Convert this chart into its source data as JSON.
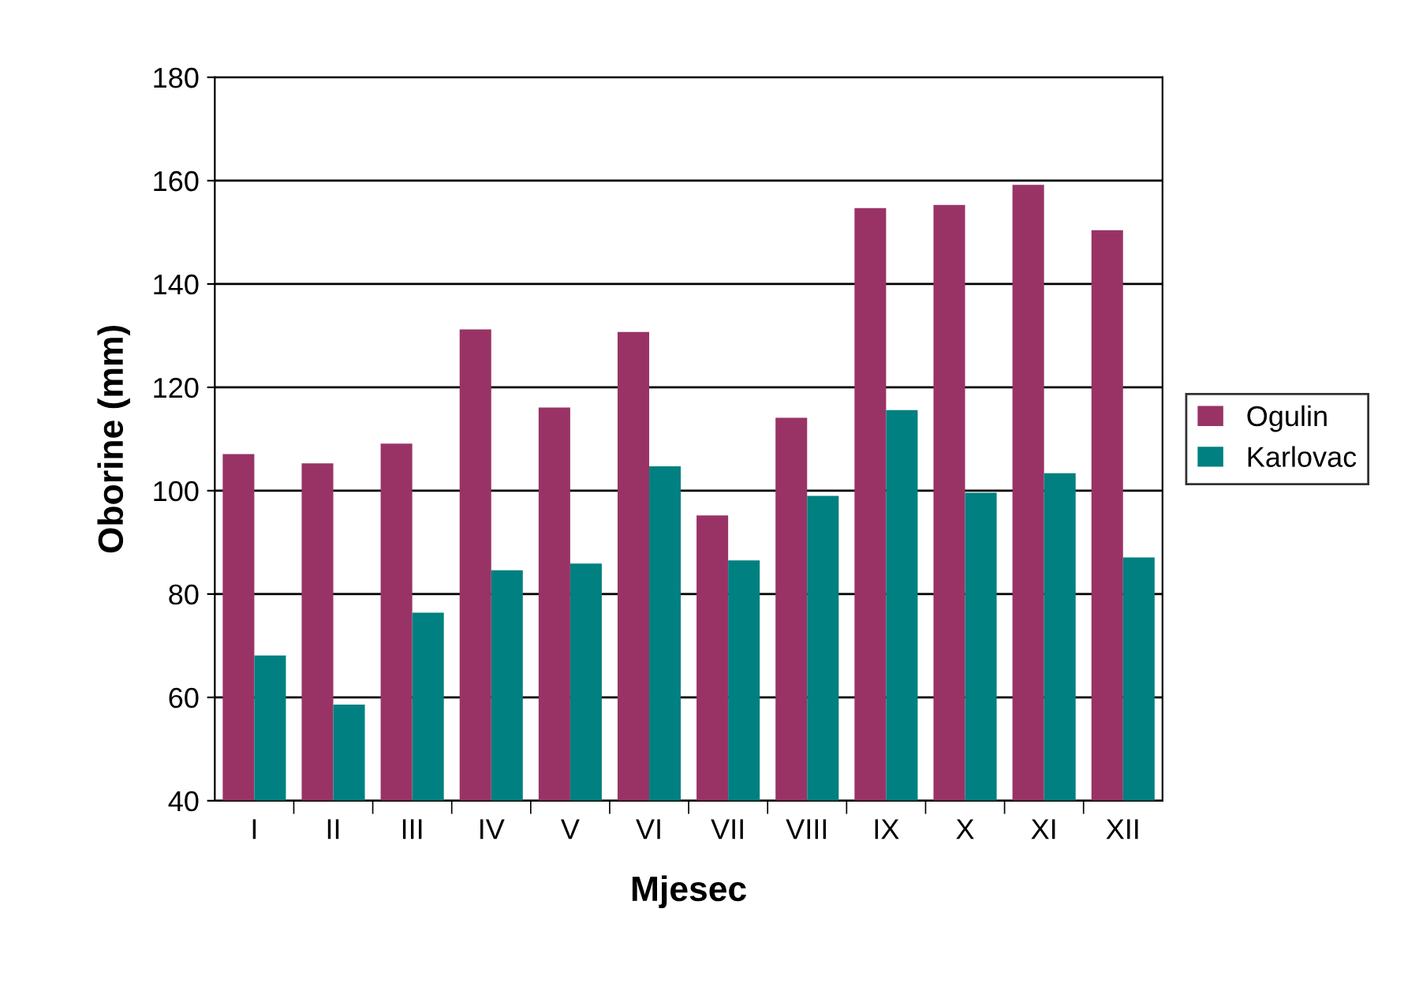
{
  "chart_data": {
    "type": "bar",
    "xlabel": "Mjesec",
    "ylabel": "Oborine (mm)",
    "categories": [
      "I",
      "II",
      "III",
      "IV",
      "V",
      "VI",
      "VII",
      "VIII",
      "IX",
      "X",
      "XI",
      "XII"
    ],
    "series": [
      {
        "name": "Ogulin",
        "color": "#993366",
        "values": [
          107.1,
          105.3,
          109.1,
          131.2,
          116.1,
          130.7,
          95.2,
          114.1,
          154.7,
          155.3,
          159.2,
          150.4
        ]
      },
      {
        "name": "Karlovac",
        "color": "#008080",
        "values": [
          68.1,
          58.6,
          76.4,
          84.6,
          85.9,
          104.7,
          86.5,
          99.0,
          115.6,
          99.6,
          103.4,
          87.1
        ]
      }
    ],
    "ylim": [
      40,
      180
    ],
    "yticks": [
      40,
      60,
      80,
      100,
      120,
      140,
      160,
      180
    ],
    "grid": "y",
    "legend": "right"
  }
}
